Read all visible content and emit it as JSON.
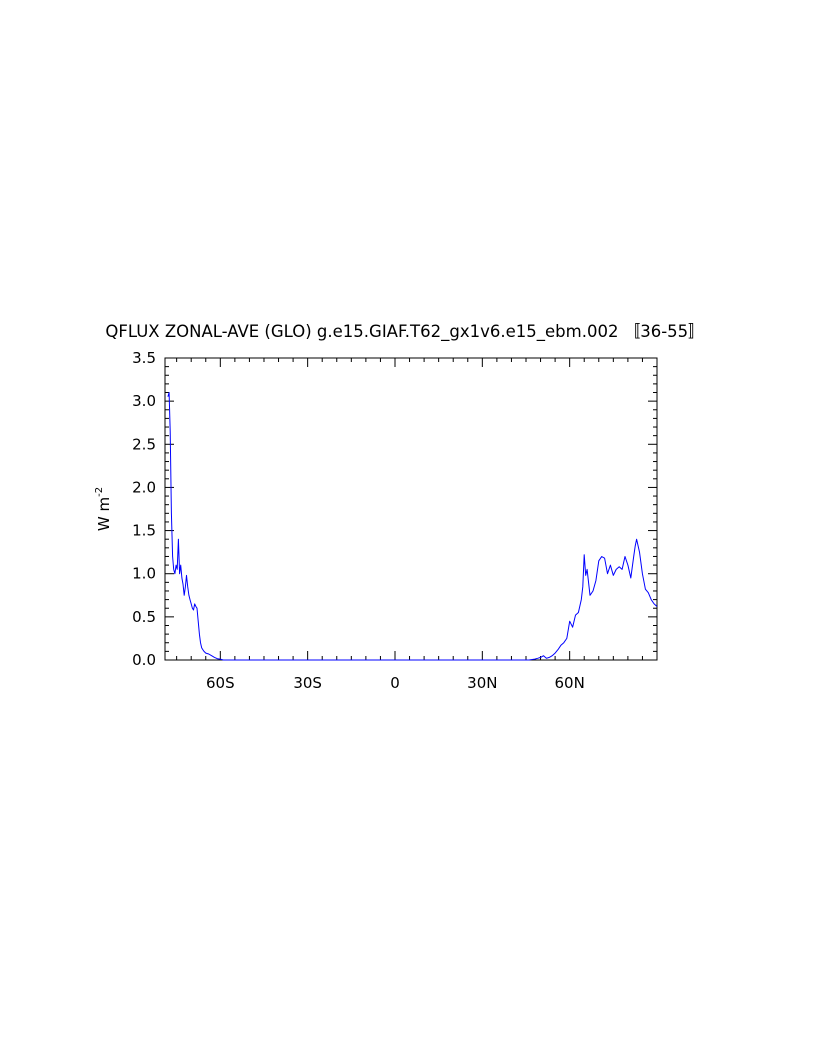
{
  "chart_data": {
    "type": "line",
    "title": "QFLUX ZONAL-AVE (GLO) g.e15.GIAF.T62_gx1v6.e15_ebm.002 〚36-55〛",
    "ylabel": "W m",
    "ylabel_exponent": "-2",
    "xlim": [
      -79,
      90
    ],
    "ylim": [
      0,
      3.5
    ],
    "x_ticks": [
      {
        "value": -60,
        "label": "60S"
      },
      {
        "value": -30,
        "label": "30S"
      },
      {
        "value": 0,
        "label": "0"
      },
      {
        "value": 30,
        "label": "30N"
      },
      {
        "value": 60,
        "label": "60N"
      }
    ],
    "y_ticks": [
      {
        "value": 0.0,
        "label": "0.0"
      },
      {
        "value": 0.5,
        "label": "0.5"
      },
      {
        "value": 1.0,
        "label": "1.0"
      },
      {
        "value": 1.5,
        "label": "1.5"
      },
      {
        "value": 2.0,
        "label": "2.0"
      },
      {
        "value": 2.5,
        "label": "2.5"
      },
      {
        "value": 3.0,
        "label": "3.0"
      },
      {
        "value": 3.5,
        "label": "3.5"
      }
    ],
    "series": [
      {
        "color": "#0000ff",
        "x": [
          -78,
          -77.6,
          -77.2,
          -76.8,
          -76.4,
          -76,
          -75.6,
          -75.2,
          -74.8,
          -74.4,
          -74,
          -73.6,
          -73.2,
          -72.8,
          -72.4,
          -72,
          -71.6,
          -71.2,
          -70.8,
          -70.4,
          -70,
          -69.6,
          -69.2,
          -68.8,
          -68.4,
          -68,
          -67.6,
          -67.2,
          -66.8,
          -66.4,
          -66,
          -65.6,
          -65,
          -64,
          -63,
          -62,
          -61,
          -60,
          -59,
          -58.5,
          -58,
          -57.5,
          -57,
          -56,
          46,
          48,
          49,
          50,
          51,
          52,
          53,
          54,
          55,
          56,
          57,
          58,
          59,
          60,
          61,
          62,
          63,
          64,
          64.5,
          65,
          65.5,
          66,
          67,
          68,
          69,
          70,
          71,
          72,
          73,
          74,
          75,
          76,
          77,
          78,
          79,
          80,
          81,
          82,
          82.5,
          83,
          84,
          85,
          86,
          87,
          88,
          89,
          90
        ],
        "y": [
          3.05,
          3.1,
          2.65,
          1.7,
          1.2,
          1.05,
          1.0,
          1.1,
          1.05,
          1.4,
          1.0,
          1.1,
          0.95,
          0.88,
          0.75,
          0.85,
          0.98,
          0.85,
          0.75,
          0.7,
          0.65,
          0.6,
          0.58,
          0.65,
          0.62,
          0.6,
          0.45,
          0.3,
          0.2,
          0.14,
          0.12,
          0.1,
          0.08,
          0.07,
          0.05,
          0.03,
          0.015,
          0.01,
          0.0,
          0.0,
          0.0,
          0.0,
          0.0,
          0.0,
          0.0,
          0.01,
          0.02,
          0.03,
          0.05,
          0.02,
          0.03,
          0.05,
          0.08,
          0.12,
          0.17,
          0.2,
          0.25,
          0.45,
          0.38,
          0.52,
          0.55,
          0.7,
          0.85,
          1.22,
          0.98,
          1.05,
          0.75,
          0.8,
          0.92,
          1.15,
          1.2,
          1.18,
          1.0,
          1.1,
          0.98,
          1.05,
          1.08,
          1.05,
          1.2,
          1.1,
          0.95,
          1.2,
          1.32,
          1.4,
          1.25,
          1.0,
          0.82,
          0.78,
          0.7,
          0.65,
          0.62
        ]
      }
    ]
  }
}
